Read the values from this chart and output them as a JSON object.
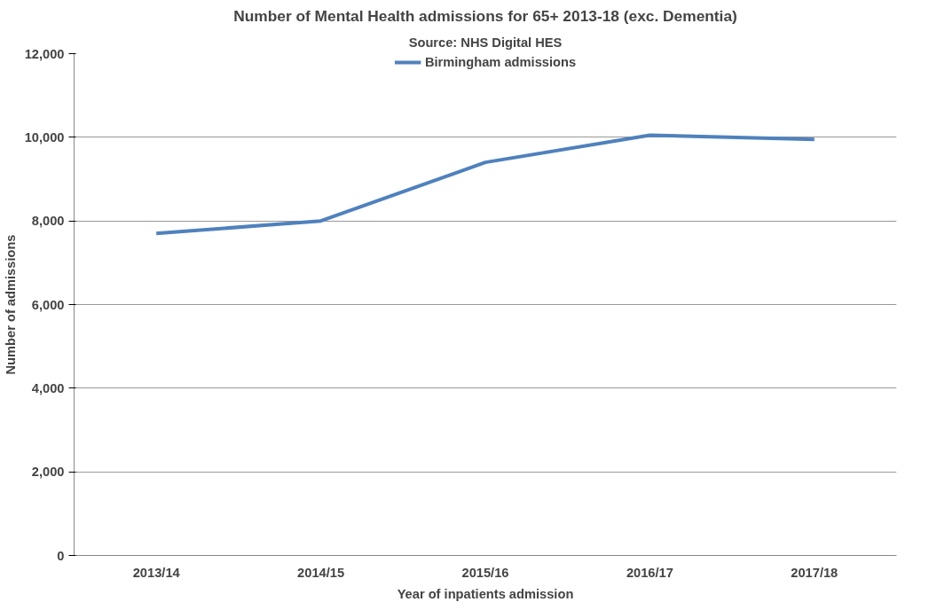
{
  "chart_data": {
    "type": "line",
    "title": "Number of Mental Health admissions for 65+ 2013-18 (exc. Dementia)",
    "subtitle": "Source: NHS Digital HES",
    "xlabel": "Year of inpatients admission",
    "ylabel": "Number of admissions",
    "categories": [
      "2013/14",
      "2014/15",
      "2015/16",
      "2016/17",
      "2017/18"
    ],
    "series": [
      {
        "name": "Birmingham admissions",
        "color": "#4f81bd",
        "values": [
          7700,
          8000,
          9400,
          10050,
          9950
        ]
      }
    ],
    "ylim": [
      0,
      12000
    ],
    "yticks": [
      {
        "value": 0,
        "label": "0"
      },
      {
        "value": 2000,
        "label": "2,000"
      },
      {
        "value": 4000,
        "label": "4,000"
      },
      {
        "value": 6000,
        "label": "6,000"
      },
      {
        "value": 8000,
        "label": "8,000"
      },
      {
        "value": 10000,
        "label": "10,000"
      },
      {
        "value": 12000,
        "label": "12,000"
      }
    ],
    "grid": "y",
    "legend": "top",
    "marker": "none",
    "line_style": "solid"
  }
}
